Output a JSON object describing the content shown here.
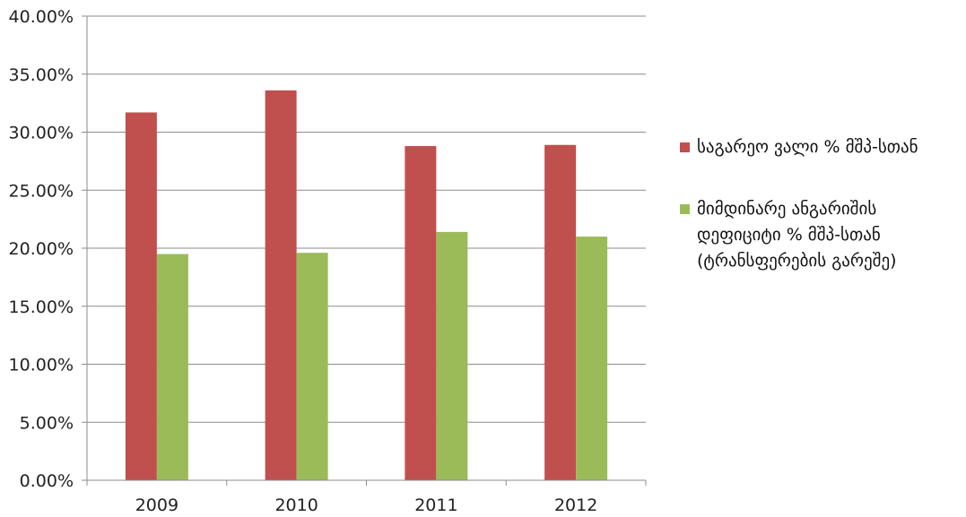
{
  "chart_data": {
    "type": "bar",
    "categories": [
      "2009",
      "2010",
      "2011",
      "2012"
    ],
    "series": [
      {
        "name": "საგარეო ვალი % მშპ-სთან",
        "color": "#c0504d",
        "values": [
          31.7,
          33.6,
          28.8,
          28.9
        ]
      },
      {
        "name": "მიმდინარე ანგარიშის დეფიციტი  % მშპ-სთან (ტრანსფერების გარეშე)",
        "color": "#9bbb59",
        "values": [
          19.5,
          19.6,
          21.4,
          21.0
        ]
      }
    ],
    "ylim": [
      0,
      40
    ],
    "yticks": [
      "0.00%",
      "5.00%",
      "10.00%",
      "15.00%",
      "20.00%",
      "25.00%",
      "30.00%",
      "35.00%",
      "40.00%"
    ],
    "ytick_values": [
      0,
      5,
      10,
      15,
      20,
      25,
      30,
      35,
      40
    ],
    "grid": true,
    "legend_position": "right"
  }
}
